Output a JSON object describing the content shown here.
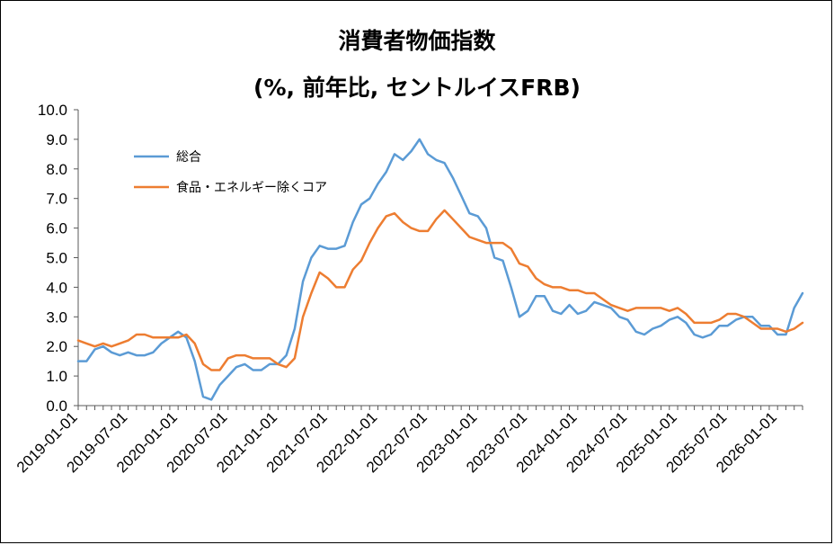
{
  "chart_data": {
    "type": "line",
    "title": "消費者物価指数",
    "subtitle": "(%, 前年比, セントルイスFRB)",
    "xlabel": "",
    "ylabel": "",
    "ylim": [
      0,
      10
    ],
    "yticks": [
      "0.0",
      "1.0",
      "2.0",
      "3.0",
      "4.0",
      "5.0",
      "6.0",
      "7.0",
      "8.0",
      "9.0",
      "10.0"
    ],
    "xticks": [
      "2019-01-01",
      "2019-07-01",
      "2020-01-01",
      "2020-07-01",
      "2021-01-01",
      "2021-07-01",
      "2022-01-01",
      "2022-07-01",
      "2023-01-01",
      "2023-07-01",
      "2024-01-01",
      "2024-07-01",
      "2025-01-01",
      "2025-07-01",
      "2026-01-01"
    ],
    "x_start": "2019-01",
    "x_end": "2026-04",
    "grid": false,
    "legend_position": "top-left",
    "series": [
      {
        "name": "総合",
        "color": "#5B9BD5",
        "values": [
          1.5,
          1.5,
          1.9,
          2.0,
          1.8,
          1.7,
          1.8,
          1.7,
          1.7,
          1.8,
          2.1,
          2.3,
          2.5,
          2.3,
          1.5,
          0.3,
          0.2,
          0.7,
          1.0,
          1.3,
          1.4,
          1.2,
          1.2,
          1.4,
          1.4,
          1.7,
          2.6,
          4.2,
          5.0,
          5.4,
          5.3,
          5.3,
          5.4,
          6.2,
          6.8,
          7.0,
          7.5,
          7.9,
          8.5,
          8.3,
          8.6,
          9.0,
          8.5,
          8.3,
          8.2,
          7.7,
          7.1,
          6.5,
          6.4,
          6.0,
          5.0,
          4.9,
          4.0,
          3.0,
          3.2,
          3.7,
          3.7,
          3.2,
          3.1,
          3.4,
          3.1,
          3.2,
          3.5,
          3.4,
          3.3,
          3.0,
          2.9,
          2.5,
          2.4,
          2.6,
          2.7,
          2.9,
          3.0,
          2.8,
          2.4,
          2.3,
          2.4,
          2.7,
          2.7,
          2.9,
          3.0,
          3.0,
          2.7,
          2.7,
          2.4,
          2.4,
          3.3,
          3.8
        ]
      },
      {
        "name": "食品・エネルギー除くコア",
        "color": "#ED7D31",
        "values": [
          2.2,
          2.1,
          2.0,
          2.1,
          2.0,
          2.1,
          2.2,
          2.4,
          2.4,
          2.3,
          2.3,
          2.3,
          2.3,
          2.4,
          2.1,
          1.4,
          1.2,
          1.2,
          1.6,
          1.7,
          1.7,
          1.6,
          1.6,
          1.6,
          1.4,
          1.3,
          1.6,
          3.0,
          3.8,
          4.5,
          4.3,
          4.0,
          4.0,
          4.6,
          4.9,
          5.5,
          6.0,
          6.4,
          6.5,
          6.2,
          6.0,
          5.9,
          5.9,
          6.3,
          6.6,
          6.3,
          6.0,
          5.7,
          5.6,
          5.5,
          5.5,
          5.5,
          5.3,
          4.8,
          4.7,
          4.3,
          4.1,
          4.0,
          4.0,
          3.9,
          3.9,
          3.8,
          3.8,
          3.6,
          3.4,
          3.3,
          3.2,
          3.3,
          3.3,
          3.3,
          3.3,
          3.2,
          3.3,
          3.1,
          2.8,
          2.8,
          2.8,
          2.9,
          3.1,
          3.1,
          3.0,
          2.8,
          2.6,
          2.6,
          2.6,
          2.5,
          2.6,
          2.8
        ]
      }
    ]
  }
}
